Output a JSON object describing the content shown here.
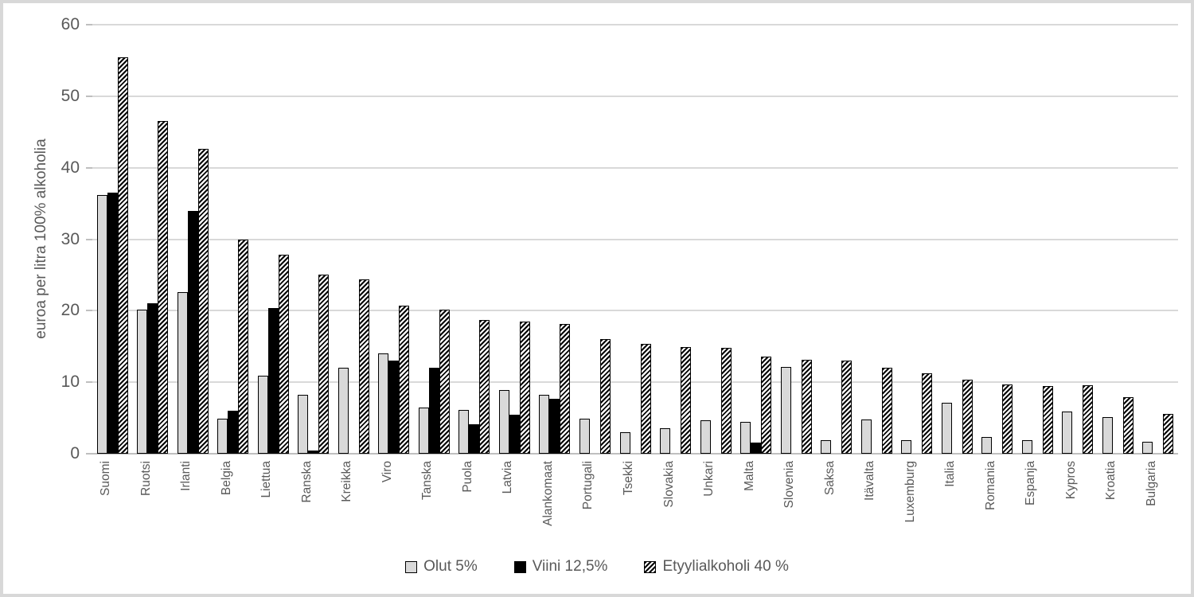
{
  "colors": {
    "background": "#ffffff",
    "frame_border": "#d8d8d8",
    "gridline": "#d9d9d9",
    "axis": "#bfbfbf",
    "text": "#595959",
    "olut_fill": "#d9d9d9",
    "viini_fill": "#000000",
    "hatch_stripe": "#000000"
  },
  "chart_data": {
    "type": "bar",
    "title": "",
    "xlabel": "",
    "ylabel": "euroa per litra 100% alkoholia",
    "ylim": [
      0,
      60
    ],
    "ytick_step": 10,
    "ytick_labels": [
      "0",
      "10",
      "20",
      "30",
      "40",
      "50",
      "60"
    ],
    "grid": "horizontal",
    "legend_position": "bottom",
    "categories": [
      "Suomi",
      "Ruotsi",
      "Irlanti",
      "Belgia",
      "Liettua",
      "Ranska",
      "Kreikka",
      "Viro",
      "Tanska",
      "Puola",
      "Latvia",
      "Alankomaat",
      "Portugali",
      "Tsekki",
      "Slovakia",
      "Unkari",
      "Malta",
      "Slovenia",
      "Saksa",
      "Itävalta",
      "Luxemburg",
      "Italia",
      "Romania",
      "Espanja",
      "Kypros",
      "Kroatia",
      "Bulgaria"
    ],
    "series": [
      {
        "name": "Olut 5%",
        "pattern": "solid-lightgray",
        "values": [
          36.2,
          20.1,
          22.6,
          4.9,
          10.9,
          8.2,
          12.0,
          14.0,
          6.5,
          6.1,
          8.9,
          8.2,
          4.9,
          3.0,
          3.6,
          4.7,
          4.5,
          12.1,
          1.9,
          4.8,
          1.9,
          7.1,
          2.3,
          1.9,
          5.9,
          5.1,
          1.7
        ]
      },
      {
        "name": "Viini 12,5%",
        "pattern": "solid-black",
        "values": [
          36.5,
          21.0,
          34.0,
          6.0,
          20.4,
          0.4,
          0,
          13.0,
          12.0,
          4.1,
          5.5,
          7.7,
          0,
          0,
          0,
          0,
          1.6,
          0,
          0,
          0,
          0,
          0,
          0,
          0,
          0,
          0,
          0
        ]
      },
      {
        "name": "Etyylialkoholi 40 %",
        "pattern": "diagonal-hatch",
        "values": [
          55.4,
          46.5,
          42.6,
          29.9,
          27.8,
          25.1,
          24.4,
          20.7,
          20.1,
          18.7,
          18.5,
          18.2,
          16.0,
          15.4,
          14.9,
          14.8,
          13.6,
          13.1,
          13.0,
          12.0,
          11.2,
          10.3,
          9.7,
          9.5,
          9.6,
          7.9,
          5.6
        ]
      }
    ]
  }
}
